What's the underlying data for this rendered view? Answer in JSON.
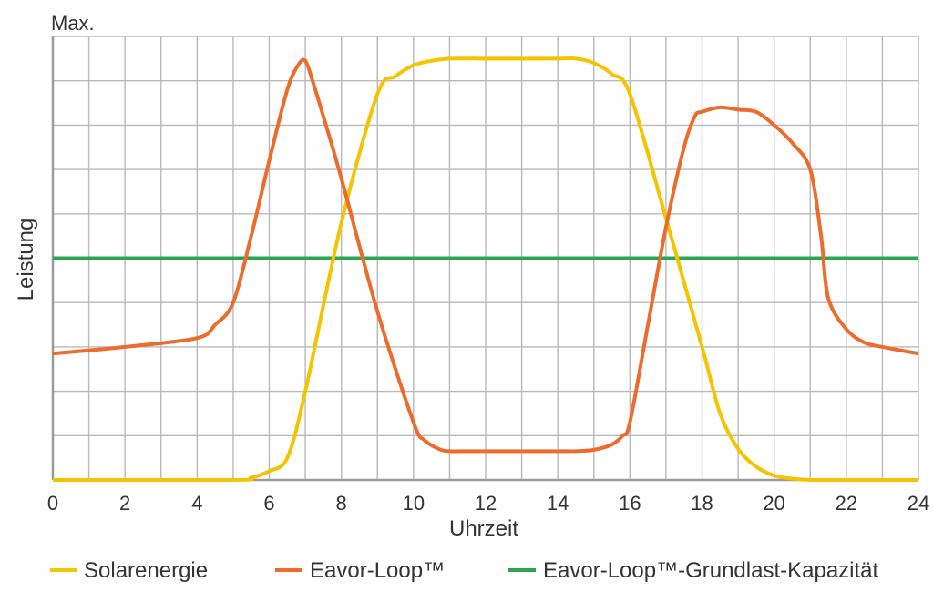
{
  "chart_data": {
    "type": "line",
    "ytop_label": "Max.",
    "xlabel": "Uhrzeit",
    "ylabel": "Leistung",
    "xlim": [
      0,
      24
    ],
    "ylim": [
      0,
      1
    ],
    "x_ticks": [
      "0",
      "2",
      "4",
      "6",
      "8",
      "10",
      "12",
      "14",
      "16",
      "18",
      "20",
      "22",
      "24"
    ],
    "grid": true,
    "legend_position": "bottom",
    "series": [
      {
        "name": "Solarenergie",
        "color": "#f5c400",
        "x": [
          0,
          5,
          5.5,
          6,
          6.5,
          7,
          8,
          9,
          9.5,
          10,
          10.5,
          11,
          12,
          13,
          14,
          14.5,
          15,
          15.5,
          16,
          17,
          18,
          18.5,
          19,
          19.5,
          20,
          20.5,
          21,
          22,
          23,
          24
        ],
        "y": [
          0,
          0,
          0.005,
          0.02,
          0.05,
          0.2,
          0.58,
          0.87,
          0.91,
          0.935,
          0.945,
          0.95,
          0.95,
          0.95,
          0.95,
          0.95,
          0.94,
          0.915,
          0.87,
          0.59,
          0.3,
          0.15,
          0.07,
          0.03,
          0.01,
          0.003,
          0,
          0,
          0,
          0
        ]
      },
      {
        "name": "Eavor-Loop™",
        "color": "#ec6b2d",
        "x": [
          0,
          2,
          4,
          4.5,
          5,
          5.5,
          6,
          6.5,
          6.8,
          7,
          7.2,
          7.5,
          8,
          9,
          10,
          10.3,
          10.7,
          11,
          11.5,
          12,
          13,
          14,
          14.5,
          15,
          15.5,
          15.8,
          16,
          16.5,
          17,
          17.5,
          17.8,
          18,
          18.5,
          19,
          19.5,
          20,
          20.5,
          21,
          21.3,
          21.5,
          22,
          22.5,
          23,
          24
        ],
        "y": [
          0.285,
          0.3,
          0.32,
          0.35,
          0.4,
          0.55,
          0.72,
          0.88,
          0.935,
          0.945,
          0.9,
          0.82,
          0.68,
          0.38,
          0.13,
          0.09,
          0.07,
          0.065,
          0.065,
          0.065,
          0.065,
          0.065,
          0.065,
          0.068,
          0.08,
          0.1,
          0.13,
          0.35,
          0.57,
          0.75,
          0.82,
          0.83,
          0.84,
          0.835,
          0.83,
          0.8,
          0.76,
          0.7,
          0.55,
          0.41,
          0.34,
          0.31,
          0.3,
          0.285
        ]
      },
      {
        "name": "Eavor-Loop™-Grundlast-Kapazität",
        "color": "#2aa552",
        "x": [
          0,
          24
        ],
        "y": [
          0.5,
          0.5
        ]
      }
    ]
  }
}
